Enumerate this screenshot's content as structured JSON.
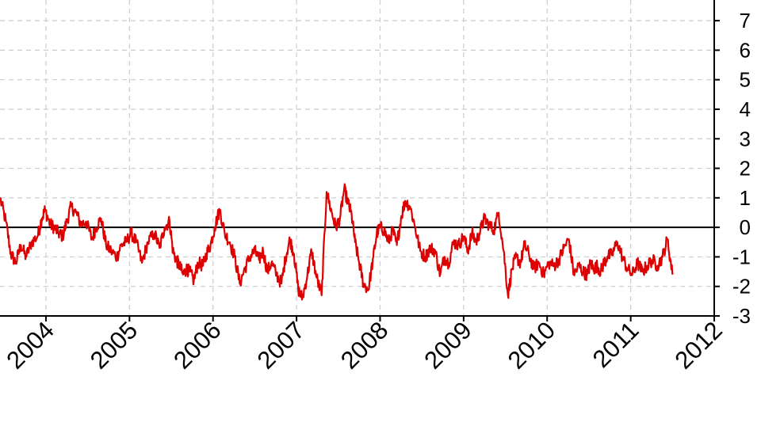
{
  "chart_data": {
    "type": "line",
    "title": "",
    "xlabel": "",
    "ylabel": "",
    "x_axis": {
      "ticks": [
        "2004",
        "2005",
        "2006",
        "2007",
        "2008",
        "2009",
        "2010",
        "2011",
        "2012"
      ],
      "range": [
        2003.45,
        2012.0
      ]
    },
    "y_axis": {
      "ticks": [
        "7",
        "6",
        "5",
        "4",
        "3",
        "2",
        "1",
        "0",
        "-1",
        "-2",
        "-3"
      ],
      "range": [
        -3,
        7.7
      ],
      "position": "right"
    },
    "grid": true,
    "reference_line": 0,
    "colors": {
      "series": "#dd0000",
      "grid": "#cccccc",
      "axis": "#000000"
    },
    "series": [
      {
        "x": [
          2003.45,
          2003.52,
          2003.58,
          2003.64,
          2003.7,
          2003.76,
          2003.83,
          2003.9,
          2003.95,
          2003.99,
          2004.05,
          2004.1,
          2004.15,
          2004.2,
          2004.25,
          2004.3,
          2004.36,
          2004.42,
          2004.48,
          2004.55,
          2004.6,
          2004.66,
          2004.72,
          2004.78,
          2004.85,
          2004.9,
          2004.96,
          2005.02,
          2005.08,
          2005.15,
          2005.22,
          2005.3,
          2005.36,
          2005.42,
          2005.48,
          2005.52,
          2005.56,
          2005.6,
          2005.64,
          2005.68,
          2005.72,
          2005.77,
          2005.82,
          2005.88,
          2005.92,
          2005.97,
          2006.02,
          2006.08,
          2006.14,
          2006.2,
          2006.26,
          2006.32,
          2006.38,
          2006.44,
          2006.5,
          2006.55,
          2006.6,
          2006.65,
          2006.7,
          2006.76,
          2006.82,
          2006.87,
          2006.92,
          2006.97,
          2007.02,
          2007.07,
          2007.13,
          2007.18,
          2007.24,
          2007.3,
          2007.36,
          2007.42,
          2007.47,
          2007.52,
          2007.57,
          2007.62,
          2007.66,
          2007.7,
          2007.75,
          2007.8,
          2007.86,
          2007.92,
          2007.96,
          2008.0,
          2008.05,
          2008.1,
          2008.15,
          2008.2,
          2008.25,
          2008.3,
          2008.36,
          2008.42,
          2008.48,
          2008.54,
          2008.6,
          2008.66,
          2008.72,
          2008.77,
          2008.82,
          2008.88,
          2008.94,
          2009.0,
          2009.05,
          2009.1,
          2009.15,
          2009.2,
          2009.25,
          2009.3,
          2009.36,
          2009.42,
          2009.48,
          2009.53,
          2009.58,
          2009.63,
          2009.68,
          2009.73,
          2009.78,
          2009.84,
          2009.9,
          2009.96,
          2010.02,
          2010.08,
          2010.14,
          2010.2,
          2010.26,
          2010.32,
          2010.38,
          2010.43,
          2010.48,
          2010.52,
          2010.56,
          2010.6,
          2010.64,
          2010.68,
          2010.72,
          2010.78,
          2010.84,
          2010.9,
          2010.96,
          2011.02,
          2011.08,
          2011.14,
          2011.2,
          2011.26,
          2011.32,
          2011.38,
          2011.44,
          2011.5
        ],
        "values": [
          1.0,
          0.2,
          -0.9,
          -1.2,
          -0.6,
          -1.0,
          -0.5,
          -0.3,
          0.3,
          0.6,
          0.1,
          0.0,
          -0.2,
          -0.3,
          0.2,
          0.7,
          0.5,
          0.1,
          0.2,
          -0.4,
          0.0,
          0.3,
          -0.6,
          -0.8,
          -1.0,
          -0.6,
          -0.5,
          -0.2,
          -0.5,
          -1.2,
          -0.5,
          -0.2,
          -0.7,
          0.0,
          0.2,
          -0.8,
          -1.1,
          -1.3,
          -1.6,
          -1.4,
          -1.5,
          -1.8,
          -1.2,
          -1.3,
          -0.9,
          -0.6,
          0.0,
          0.6,
          -0.2,
          -0.5,
          -1.0,
          -1.9,
          -1.4,
          -1.0,
          -0.8,
          -1.1,
          -0.8,
          -1.5,
          -1.2,
          -1.6,
          -1.9,
          -1.0,
          -0.4,
          -0.9,
          -2.1,
          -2.4,
          -1.6,
          -0.8,
          -1.7,
          -2.3,
          1.2,
          0.5,
          0.0,
          0.3,
          1.3,
          0.8,
          0.4,
          -0.5,
          -1.2,
          -1.9,
          -2.1,
          -1.0,
          -0.2,
          0.0,
          -0.1,
          -0.5,
          -0.1,
          -0.6,
          0.3,
          0.9,
          0.7,
          0.0,
          -0.8,
          -1.0,
          -0.7,
          -0.8,
          -1.6,
          -1.0,
          -1.2,
          -0.5,
          -0.6,
          -0.3,
          -0.8,
          -0.2,
          -0.5,
          -0.1,
          0.3,
          0.1,
          -0.1,
          0.5,
          -0.8,
          -2.3,
          -1.4,
          -1.0,
          -1.2,
          -0.6,
          -0.9,
          -1.4,
          -1.2,
          -1.6,
          -1.2,
          -1.3,
          -1.1,
          -0.7,
          -0.4,
          -1.6,
          -1.3,
          -1.5,
          -1.6,
          -1.2,
          -1.4,
          -1.3,
          -1.5,
          -1.2,
          -1.0,
          -0.9,
          -0.5,
          -1.0,
          -1.4,
          -1.6,
          -1.2,
          -1.5,
          -1.3,
          -1.1,
          -1.3,
          -1.0,
          -0.4,
          -1.6
        ],
        "note_unused": ""
      }
    ]
  }
}
